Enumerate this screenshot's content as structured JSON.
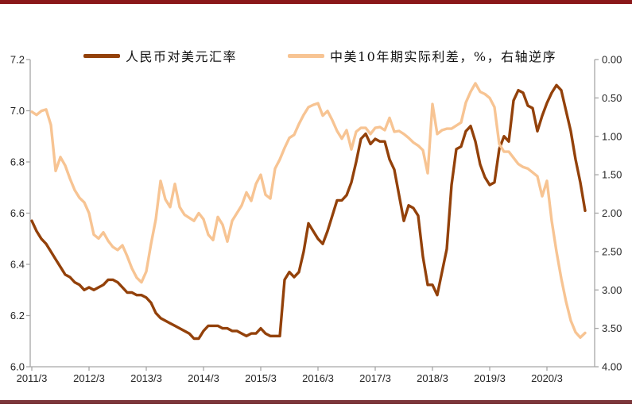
{
  "page": {
    "top_bar_color": "#8a1719",
    "bottom_bar_color": "#7c373b",
    "background": "#ffffff"
  },
  "chart_data": {
    "type": "line",
    "title": "",
    "x_frequency": "monthly",
    "x_start": "2011/3",
    "x_end": "2020/11",
    "x_tick_labels": [
      "2011/3",
      "2012/3",
      "2013/3",
      "2014/3",
      "2015/3",
      "2016/3",
      "2017/3",
      "2018/3",
      "2019/3",
      "2020/3"
    ],
    "grid": false,
    "legend_position": "top",
    "axis_color": "#a6a6a6",
    "tick_label_color": "#262626",
    "left_axis": {
      "min": 6.0,
      "max": 7.2,
      "step": 0.2,
      "reversed": false,
      "tick_labels": [
        "7.2",
        "7.0",
        "6.8",
        "6.6",
        "6.4",
        "6.2",
        "6.0"
      ]
    },
    "right_axis": {
      "min": 0.0,
      "max": 4.0,
      "step": 0.5,
      "reversed": true,
      "tick_labels": [
        "0.00",
        "0.50",
        "1.00",
        "1.50",
        "2.00",
        "2.50",
        "3.00",
        "3.50",
        "4.00"
      ]
    },
    "series": [
      {
        "name": "人民币对美元汇率",
        "axis": "left",
        "color": "#93410a",
        "values": [
          6.57,
          6.53,
          6.5,
          6.48,
          6.45,
          6.42,
          6.39,
          6.36,
          6.35,
          6.33,
          6.32,
          6.3,
          6.31,
          6.3,
          6.31,
          6.32,
          6.34,
          6.34,
          6.33,
          6.31,
          6.29,
          6.29,
          6.28,
          6.28,
          6.27,
          6.25,
          6.21,
          6.19,
          6.18,
          6.17,
          6.16,
          6.15,
          6.14,
          6.13,
          6.11,
          6.11,
          6.14,
          6.16,
          6.16,
          6.16,
          6.15,
          6.15,
          6.14,
          6.14,
          6.13,
          6.12,
          6.13,
          6.13,
          6.15,
          6.13,
          6.12,
          6.12,
          6.12,
          6.34,
          6.37,
          6.35,
          6.37,
          6.45,
          6.56,
          6.53,
          6.5,
          6.48,
          6.53,
          6.59,
          6.65,
          6.65,
          6.67,
          6.72,
          6.8,
          6.89,
          6.91,
          6.87,
          6.89,
          6.88,
          6.88,
          6.81,
          6.77,
          6.67,
          6.57,
          6.63,
          6.62,
          6.59,
          6.43,
          6.32,
          6.32,
          6.28,
          6.37,
          6.46,
          6.71,
          6.85,
          6.86,
          6.92,
          6.94,
          6.88,
          6.79,
          6.74,
          6.71,
          6.72,
          6.85,
          6.9,
          6.88,
          7.04,
          7.08,
          7.07,
          7.02,
          7.01,
          6.92,
          6.98,
          7.03,
          7.07,
          7.1,
          7.08,
          7.0,
          6.92,
          6.81,
          6.72,
          6.61
        ]
      },
      {
        "name": "中美10年期实际利差，%，右轴逆序",
        "axis": "right",
        "color": "#f7c493",
        "values": [
          0.68,
          0.72,
          0.67,
          0.65,
          0.85,
          1.45,
          1.27,
          1.38,
          1.55,
          1.7,
          1.8,
          1.86,
          2.0,
          2.28,
          2.33,
          2.25,
          2.36,
          2.44,
          2.48,
          2.42,
          2.56,
          2.72,
          2.84,
          2.9,
          2.76,
          2.4,
          2.08,
          1.58,
          1.82,
          1.92,
          1.62,
          1.92,
          2.02,
          2.06,
          2.1,
          2.0,
          2.08,
          2.28,
          2.35,
          2.05,
          2.15,
          2.37,
          2.1,
          2.0,
          1.9,
          1.73,
          1.84,
          1.62,
          1.5,
          1.76,
          1.81,
          1.42,
          1.3,
          1.15,
          1.02,
          0.98,
          0.84,
          0.72,
          0.62,
          0.59,
          0.57,
          0.73,
          0.67,
          0.79,
          0.93,
          1.03,
          0.92,
          1.17,
          0.94,
          0.89,
          0.89,
          0.97,
          0.89,
          0.88,
          0.92,
          0.76,
          0.94,
          0.93,
          0.97,
          1.02,
          1.08,
          1.12,
          1.18,
          1.48,
          0.58,
          0.97,
          0.92,
          0.9,
          0.9,
          0.86,
          0.82,
          0.56,
          0.42,
          0.31,
          0.42,
          0.45,
          0.5,
          0.62,
          1.1,
          1.2,
          1.2,
          1.28,
          1.36,
          1.4,
          1.42,
          1.47,
          1.52,
          1.78,
          1.58,
          2.1,
          2.5,
          2.85,
          3.15,
          3.4,
          3.55,
          3.62,
          3.56
        ]
      }
    ]
  }
}
